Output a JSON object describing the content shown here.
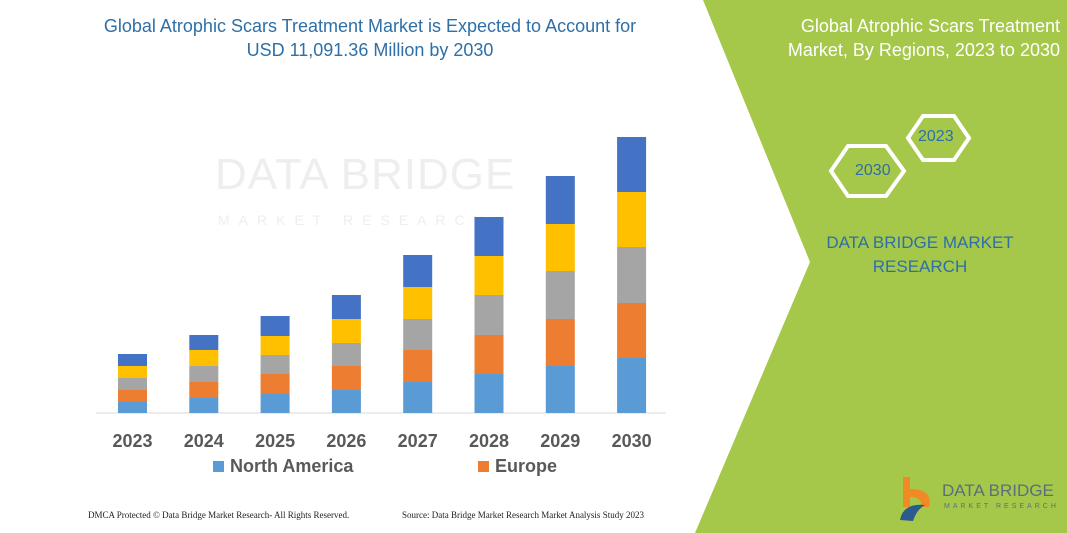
{
  "title": "Global Atrophic Scars Treatment Market is Expected to Account for USD 11,091.36 Million by 2030",
  "side_panel": {
    "title": "Global Atrophic Scars Treatment Market, By Regions, 2023 to 2030",
    "hex_start": "2023",
    "hex_end": "2030",
    "brand": "DATA BRIDGE MARKET RESEARCH",
    "accent": "#a5c84a"
  },
  "watermark": {
    "line1": "DATA BRIDGE",
    "line2": "MARKET RESEARCH"
  },
  "logo": {
    "line1": "DATA BRIDGE",
    "line2": "MARKET RESEARCH"
  },
  "footer": {
    "dmca": "DMCA Protected © Data Bridge Market Research-  All Rights Reserved.",
    "source": "Source: Data Bridge Market Research  Market Analysis Study 2023"
  },
  "chart_data": {
    "type": "bar",
    "stacked": true,
    "grid": false,
    "y_axis_shown": false,
    "categories": [
      "2023",
      "2024",
      "2025",
      "2026",
      "2027",
      "2028",
      "2029",
      "2030"
    ],
    "series": [
      {
        "name": "North America",
        "color": "#5b9bd5",
        "values": [
          11,
          15,
          19,
          23,
          31,
          39,
          47,
          55
        ]
      },
      {
        "name": "Europe",
        "color": "#ed7d31",
        "values": [
          12,
          16,
          20,
          24,
          32,
          39,
          47,
          55
        ]
      },
      {
        "color": "#a5a5a5",
        "values": [
          12,
          16,
          19,
          23,
          31,
          40,
          48,
          56
        ]
      },
      {
        "color": "#ffc000",
        "values": [
          12,
          16,
          19,
          24,
          32,
          39,
          47,
          55
        ]
      },
      {
        "color": "#4472c4",
        "values": [
          12,
          15,
          20,
          24,
          32,
          39,
          48,
          55
        ]
      }
    ],
    "legend": "bottom"
  }
}
